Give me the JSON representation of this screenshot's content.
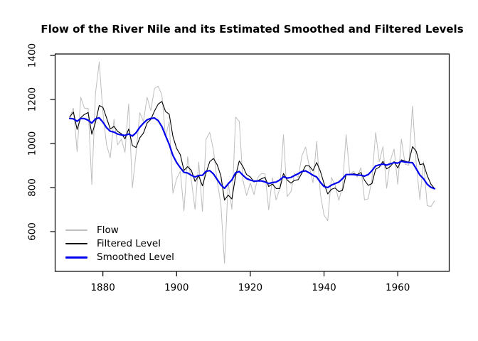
{
  "title": "Flow of the River Nile and its Estimated Smoothed and Filtered Levels",
  "colors": {
    "background": "#FFFFFF",
    "axis": "#000000",
    "flow": "#BEBEBE",
    "filtered": "#000000",
    "smoothed": "#0000EE"
  },
  "chart_data": {
    "type": "line",
    "title": "Flow of the River Nile and its Estimated Smoothed and Filtered Levels",
    "xlabel": "",
    "ylabel": "",
    "x_start": 1871,
    "x_end": 1970,
    "xlim": [
      1867.04,
      1973.96
    ],
    "ylim": [
      419.4,
      1406.6
    ],
    "x_ticks": [
      1880,
      1900,
      1920,
      1940,
      1960
    ],
    "y_ticks": [
      600,
      800,
      1000,
      1200,
      1400
    ],
    "grid": false,
    "legend_position": "bottom-left-inside",
    "legend_border": false,
    "series": [
      {
        "name": "Flow",
        "color": "#BEBEBE",
        "lwd": 1,
        "values": [
          1120,
          1160,
          963,
          1210,
          1160,
          1160,
          813,
          1230,
          1370,
          1140,
          995,
          935,
          1110,
          994,
          1020,
          960,
          1180,
          799,
          958,
          1140,
          1100,
          1210,
          1150,
          1250,
          1260,
          1220,
          1030,
          1100,
          774,
          840,
          874,
          694,
          940,
          833,
          701,
          916,
          692,
          1020,
          1050,
          969,
          831,
          726,
          456,
          824,
          702,
          1120,
          1100,
          832,
          764,
          821,
          768,
          845,
          864,
          862,
          698,
          845,
          744,
          796,
          1040,
          759,
          781,
          865,
          845,
          944,
          984,
          897,
          822,
          1010,
          771,
          676,
          649,
          846,
          812,
          742,
          801,
          1040,
          860,
          874,
          848,
          890,
          744,
          749,
          838,
          1050,
          918,
          986,
          797,
          923,
          975,
          815,
          1020,
          906,
          901,
          1170,
          912,
          746,
          919,
          718,
          714,
          740
        ]
      },
      {
        "name": "Filtered Level",
        "color": "#000000",
        "lwd": 1.1,
        "values": [
          1120,
          1143,
          1064,
          1118,
          1132,
          1141,
          1042,
          1097,
          1173,
          1164,
          1117,
          1066,
          1078,
          1055,
          1045,
          1021,
          1066,
          991,
          982,
          1026,
          1047,
          1093,
          1109,
          1148,
          1179,
          1191,
          1146,
          1133,
          1032,
          978,
          949,
          878,
          895,
          878,
          828,
          853,
          808,
          867,
          918,
          932,
          904,
          854,
          743,
          766,
          748,
          852,
          921,
          896,
          859,
          848,
          826,
          831,
          840,
          846,
          805,
          816,
          796,
          796,
          864,
          835,
          820,
          833,
          836,
          866,
          899,
          898,
          877,
          914,
          874,
          819,
          771,
          792,
          798,
          782,
          787,
          858,
          859,
          863,
          859,
          868,
          833,
          810,
          818,
          883,
          893,
          919,
          885,
          896,
          918,
          889,
          926,
          920,
          915,
          986,
          965,
          904,
          908,
          855,
          816,
          795
        ]
      },
      {
        "name": "Smoothed Level",
        "color": "#0000EE",
        "lwd": 2.2,
        "values": [
          1114,
          1112,
          1101,
          1114,
          1113,
          1106,
          1093,
          1112,
          1117,
          1097,
          1072,
          1056,
          1052,
          1043,
          1039,
          1037,
          1043,
          1034,
          1049,
          1074,
          1092,
          1108,
          1114,
          1116,
          1104,
          1077,
          1036,
          996,
          946,
          914,
          890,
          869,
          866,
          856,
          848,
          855,
          856,
          874,
          877,
          862,
          837,
          812,
          797,
          817,
          835,
          867,
          873,
          856,
          841,
          834,
          829,
          830,
          830,
          826,
          818,
          823,
          825,
          835,
          849,
          843,
          846,
          855,
          863,
          873,
          876,
          867,
          856,
          848,
          824,
          805,
          800,
          811,
          818,
          825,
          840,
          859,
          859,
          859,
          857,
          856,
          852,
          859,
          877,
          898,
          903,
          907,
          902,
          908,
          913,
          911,
          919,
          916,
          914,
          913,
          886,
          857,
          840,
          815,
          801,
          795
        ]
      }
    ]
  }
}
